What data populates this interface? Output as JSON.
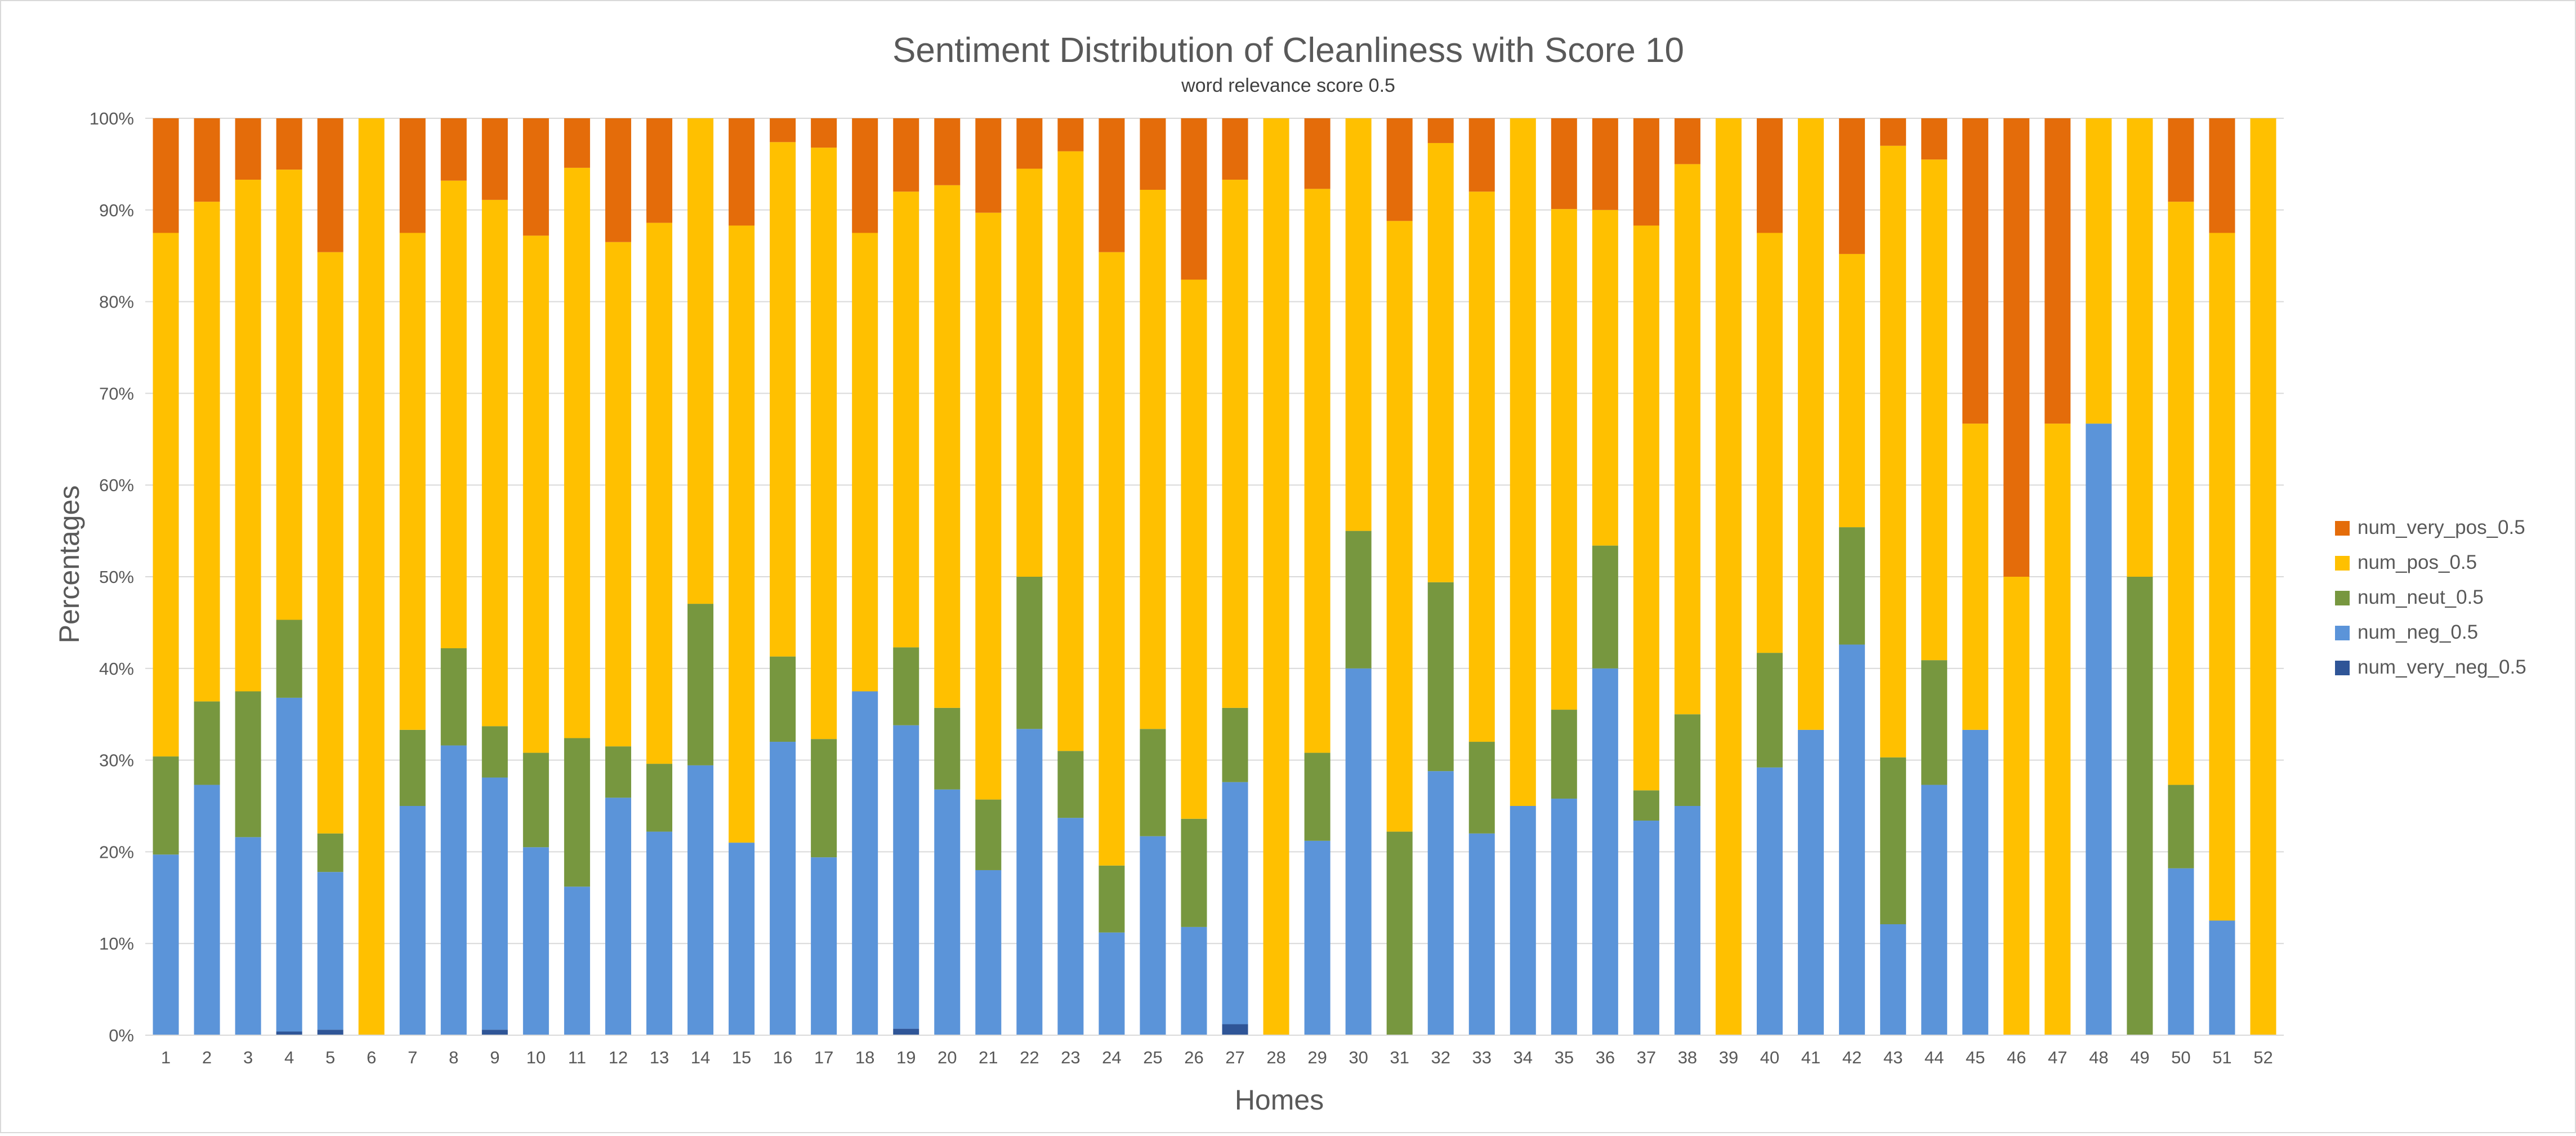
{
  "chart_data": {
    "type": "bar",
    "stacked": true,
    "percent_stacked": true,
    "title": "Sentiment Distribution of Cleanliness with Score 10",
    "subtitle": "word relevance score 0.5",
    "xlabel": "Homes",
    "ylabel": "Percentages",
    "ylim": [
      0,
      100
    ],
    "yticks": [
      "0%",
      "10%",
      "20%",
      "30%",
      "40%",
      "50%",
      "60%",
      "70%",
      "80%",
      "90%",
      "100%"
    ],
    "grid": true,
    "legend_position": "right",
    "categories": [
      "1",
      "2",
      "3",
      "4",
      "5",
      "6",
      "7",
      "8",
      "9",
      "10",
      "11",
      "12",
      "13",
      "14",
      "15",
      "16",
      "17",
      "18",
      "19",
      "20",
      "21",
      "22",
      "23",
      "24",
      "25",
      "26",
      "27",
      "28",
      "29",
      "30",
      "31",
      "32",
      "33",
      "34",
      "35",
      "36",
      "37",
      "38",
      "39",
      "40",
      "41",
      "42",
      "43",
      "44",
      "45",
      "46",
      "47",
      "48",
      "49",
      "50",
      "51",
      "52"
    ],
    "series": [
      {
        "name": "num_very_neg_0.5",
        "color": "#2f5597",
        "values": [
          0,
          0,
          0,
          0.4,
          0.6,
          0,
          0,
          0,
          0.6,
          0,
          0,
          0,
          0,
          0,
          0,
          0,
          0,
          0,
          0.7,
          0,
          0,
          0,
          0,
          0,
          0,
          0,
          1.2,
          0,
          0,
          0,
          0,
          0,
          0,
          0,
          0,
          0,
          0,
          0,
          0,
          0,
          0,
          0,
          0,
          0,
          0,
          0,
          0,
          0,
          0,
          0,
          0,
          0
        ]
      },
      {
        "name": "num_neg_0.5",
        "color": "#5b94d9",
        "values": [
          19.7,
          27.3,
          21.6,
          36.4,
          17.2,
          0,
          25,
          31.6,
          27.5,
          20.5,
          16.2,
          25.9,
          22.2,
          29.4,
          21,
          32,
          19.4,
          37.5,
          33.1,
          26.8,
          18,
          33.4,
          23.7,
          11.2,
          21.7,
          11.8,
          26.4,
          0,
          21.2,
          40,
          0,
          28.8,
          22,
          25,
          25.8,
          40,
          23.4,
          25,
          0,
          29.2,
          33.3,
          42.6,
          12.1,
          27.3,
          33.3,
          0,
          0,
          66.7,
          0,
          18.2,
          12.5,
          0
        ]
      },
      {
        "name": "num_neut_0.5",
        "color": "#77973f",
        "values": [
          10.7,
          9.1,
          15.9,
          8.5,
          4.2,
          0,
          8.3,
          10.6,
          5.6,
          10.3,
          16.2,
          5.6,
          7.4,
          17.6,
          0,
          9.3,
          12.9,
          0,
          8.5,
          8.9,
          7.7,
          16.6,
          7.3,
          7.3,
          11.7,
          11.8,
          8.1,
          0,
          9.6,
          15,
          22.2,
          20.6,
          10,
          0,
          9.7,
          13.4,
          3.3,
          10,
          0,
          12.5,
          0,
          12.8,
          18.2,
          13.6,
          0,
          0,
          0,
          0,
          50,
          9.1,
          0,
          0
        ]
      },
      {
        "name": "num_pos_0.5",
        "color": "#ffc000",
        "values": [
          57.1,
          54.5,
          55.8,
          49.1,
          63.4,
          100,
          54.2,
          51,
          57.4,
          56.4,
          62.2,
          55,
          59,
          52.9,
          67.3,
          56.1,
          64.5,
          50,
          49.7,
          57,
          64,
          44.5,
          65.4,
          66.9,
          58.8,
          58.8,
          57.6,
          100,
          61.5,
          45,
          66.6,
          47.9,
          60,
          75,
          54.6,
          36.6,
          61.6,
          60,
          100,
          45.8,
          66.7,
          29.8,
          66.7,
          54.6,
          33.4,
          50,
          66.7,
          33.3,
          50,
          63.6,
          75,
          100
        ]
      },
      {
        "name": "num_very_pos_0.5",
        "color": "#e46c0a",
        "values": [
          12.5,
          9.1,
          6.7,
          5.6,
          14.6,
          0,
          12.5,
          6.8,
          8.9,
          12.8,
          5.4,
          13.5,
          11.4,
          0,
          11.7,
          2.6,
          3.2,
          12.5,
          8,
          7.3,
          10.3,
          5.5,
          3.6,
          14.6,
          7.8,
          17.6,
          6.7,
          0,
          7.7,
          0,
          11.2,
          2.7,
          8,
          0,
          9.9,
          10,
          11.7,
          5,
          0,
          12.5,
          0,
          14.8,
          3,
          4.5,
          33.3,
          50,
          33.3,
          0,
          0,
          9.1,
          12.5,
          0
        ]
      }
    ]
  }
}
